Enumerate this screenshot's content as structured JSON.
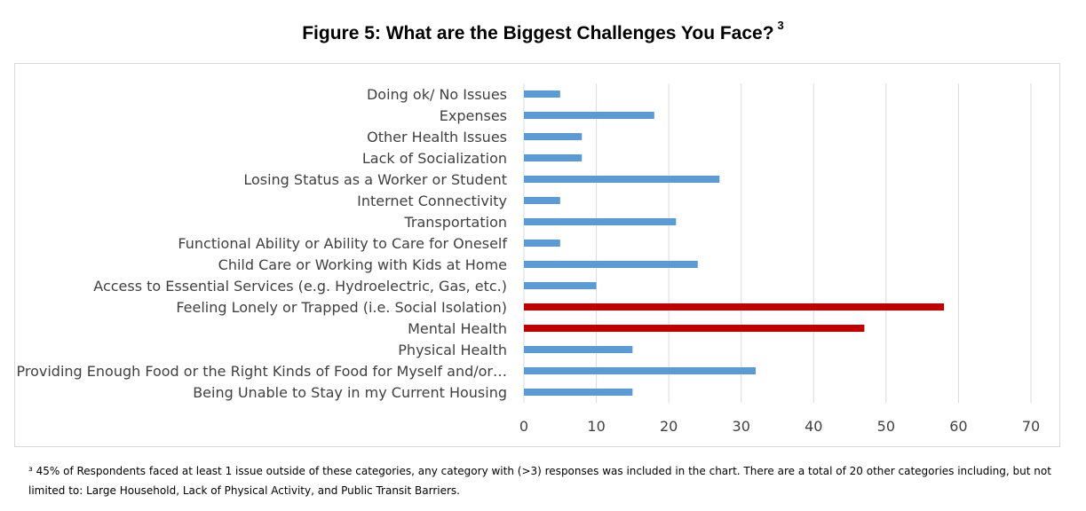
{
  "title": "Figure 5: What are the Biggest Challenges You Face?",
  "title_note_marker": "3",
  "footnote": {
    "marker": "³",
    "text": " 45% of Respondents faced at least 1 issue outside of these categories, any category with (>3) responses was included in the chart. There are a total of 20 other categories including, but not limited to: Large Household, Lack of Physical Activity, and Public Transit Barriers."
  },
  "chart_data": {
    "type": "bar",
    "orientation": "horizontal",
    "categories": [
      "Doing ok/ No Issues",
      "Expenses",
      "Other Health Issues",
      "Lack of Socialization",
      "Losing Status as a Worker or Student",
      "Internet Connectivity",
      "Transportation",
      "Functional Ability or Ability to Care for Oneself",
      "Child Care or Working with Kids at Home",
      "Access to Essential Services (e.g. Hydroelectric, Gas, etc.)",
      "Feeling Lonely or Trapped (i.e. Social Isolation)",
      "Mental Health",
      "Physical Health",
      "Providing Enough Food or the Right Kinds of Food for Myself and/or…",
      "Being Unable to Stay in my Current Housing"
    ],
    "values": [
      5,
      18,
      8,
      8,
      27,
      5,
      21,
      5,
      24,
      10,
      58,
      47,
      15,
      32,
      15
    ],
    "highlight": [
      false,
      false,
      false,
      false,
      false,
      false,
      false,
      false,
      false,
      false,
      true,
      true,
      false,
      false,
      false
    ],
    "colors": {
      "default": "#5b9bd5",
      "highlight": "#c00000",
      "grid": "#d9d9d9",
      "text": "#404040"
    },
    "xlim": [
      0,
      70
    ],
    "xticks": [
      "0",
      "10",
      "20",
      "30",
      "40",
      "50",
      "60",
      "70"
    ],
    "grid": true,
    "legend": "none"
  }
}
